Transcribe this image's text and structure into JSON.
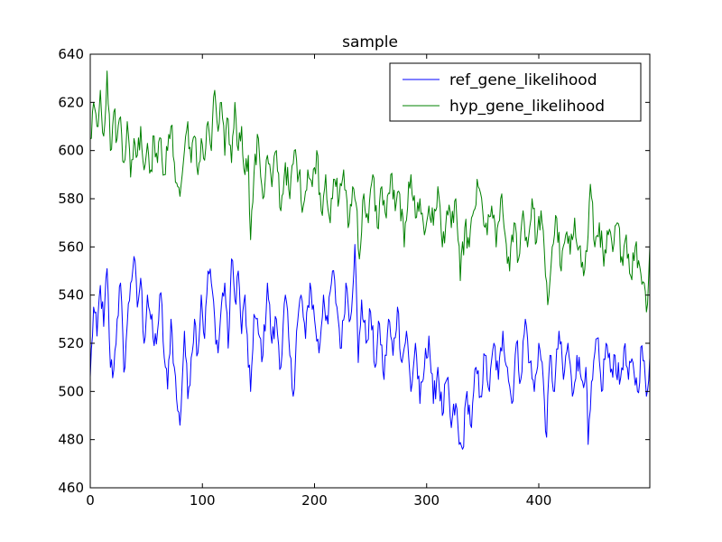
{
  "chart_data": {
    "type": "line",
    "title": "sample",
    "xlabel": "",
    "ylabel": "",
    "xlim": [
      0,
      499
    ],
    "ylim": [
      460,
      640
    ],
    "xticks": [
      0,
      100,
      200,
      300,
      400
    ],
    "yticks": [
      460,
      480,
      500,
      520,
      540,
      560,
      580,
      600,
      620,
      640
    ],
    "grid": false,
    "legend_position": "top-right",
    "series": [
      {
        "name": "ref_gene_likelihood",
        "color": "#0000ff",
        "anchors": [
          [
            0,
            506
          ],
          [
            3,
            535
          ],
          [
            6,
            523
          ],
          [
            9,
            544
          ],
          [
            12,
            527
          ],
          [
            15,
            551
          ],
          [
            18,
            510
          ],
          [
            21,
            509
          ],
          [
            24,
            530
          ],
          [
            27,
            545
          ],
          [
            30,
            508
          ],
          [
            33,
            528
          ],
          [
            36,
            545
          ],
          [
            39,
            556
          ],
          [
            42,
            535
          ],
          [
            45,
            547
          ],
          [
            48,
            520
          ],
          [
            51,
            540
          ],
          [
            54,
            530
          ],
          [
            57,
            519
          ],
          [
            60,
            525
          ],
          [
            63,
            541
          ],
          [
            66,
            514
          ],
          [
            69,
            501
          ],
          [
            72,
            530
          ],
          [
            75,
            510
          ],
          [
            78,
            492
          ],
          [
            80,
            486
          ],
          [
            84,
            525
          ],
          [
            87,
            497
          ],
          [
            90,
            514
          ],
          [
            93,
            530
          ],
          [
            96,
            516
          ],
          [
            99,
            540
          ],
          [
            102,
            522
          ],
          [
            105,
            550
          ],
          [
            108,
            545
          ],
          [
            111,
            530
          ],
          [
            114,
            516
          ],
          [
            117,
            536
          ],
          [
            120,
            545
          ],
          [
            123,
            518
          ],
          [
            126,
            555
          ],
          [
            129,
            538
          ],
          [
            132,
            550
          ],
          [
            135,
            524
          ],
          [
            138,
            540
          ],
          [
            141,
            510
          ],
          [
            143,
            500
          ],
          [
            146,
            532
          ],
          [
            150,
            524
          ],
          [
            154,
            515
          ],
          [
            158,
            545
          ],
          [
            162,
            520
          ],
          [
            166,
            530
          ],
          [
            170,
            510
          ],
          [
            174,
            540
          ],
          [
            178,
            515
          ],
          [
            181,
            498
          ],
          [
            184,
            525
          ],
          [
            188,
            540
          ],
          [
            192,
            522
          ],
          [
            196,
            545
          ],
          [
            200,
            530
          ],
          [
            204,
            516
          ],
          [
            208,
            540
          ],
          [
            212,
            528
          ],
          [
            216,
            550
          ],
          [
            220,
            535
          ],
          [
            224,
            518
          ],
          [
            228,
            545
          ],
          [
            232,
            530
          ],
          [
            236,
            561
          ],
          [
            239,
            512
          ],
          [
            242,
            538
          ],
          [
            246,
            520
          ],
          [
            250,
            533
          ],
          [
            254,
            510
          ],
          [
            258,
            528
          ],
          [
            262,
            505
          ],
          [
            266,
            530
          ],
          [
            270,
            515
          ],
          [
            274,
            535
          ],
          [
            278,
            512
          ],
          [
            282,
            525
          ],
          [
            286,
            500
          ],
          [
            290,
            520
          ],
          [
            294,
            495
          ],
          [
            298,
            510
          ],
          [
            302,
            523
          ],
          [
            306,
            495
          ],
          [
            310,
            510
          ],
          [
            314,
            490
          ],
          [
            318,
            505
          ],
          [
            322,
            485
          ],
          [
            326,
            495
          ],
          [
            329,
            478
          ],
          [
            332,
            476
          ],
          [
            336,
            500
          ],
          [
            340,
            485
          ],
          [
            344,
            510
          ],
          [
            348,
            498
          ],
          [
            352,
            515
          ],
          [
            356,
            500
          ],
          [
            360,
            520
          ],
          [
            364,
            505
          ],
          [
            368,
            525
          ],
          [
            372,
            510
          ],
          [
            376,
            495
          ],
          [
            380,
            520
          ],
          [
            384,
            505
          ],
          [
            388,
            530
          ],
          [
            392,
            512
          ],
          [
            396,
            500
          ],
          [
            400,
            520
          ],
          [
            404,
            505
          ],
          [
            407,
            481
          ],
          [
            410,
            515
          ],
          [
            414,
            500
          ],
          [
            418,
            525
          ],
          [
            422,
            505
          ],
          [
            426,
            520
          ],
          [
            430,
            498
          ],
          [
            434,
            515
          ],
          [
            438,
            505
          ],
          [
            442,
            510
          ],
          [
            444,
            478
          ],
          [
            448,
            505
          ],
          [
            452,
            522
          ],
          [
            456,
            500
          ],
          [
            460,
            520
          ],
          [
            464,
            508
          ],
          [
            468,
            515
          ],
          [
            472,
            503
          ],
          [
            476,
            518
          ],
          [
            480,
            505
          ],
          [
            484,
            512
          ],
          [
            488,
            500
          ],
          [
            492,
            519
          ],
          [
            496,
            498
          ],
          [
            499,
            514
          ]
        ]
      },
      {
        "name": "hyp_gene_likelihood",
        "color": "#008000",
        "anchors": [
          [
            0,
            605
          ],
          [
            3,
            620
          ],
          [
            6,
            610
          ],
          [
            9,
            625
          ],
          [
            12,
            606
          ],
          [
            15,
            633
          ],
          [
            18,
            600
          ],
          [
            21,
            616
          ],
          [
            24,
            605
          ],
          [
            27,
            614
          ],
          [
            30,
            595
          ],
          [
            33,
            612
          ],
          [
            36,
            589
          ],
          [
            39,
            605
          ],
          [
            42,
            598
          ],
          [
            45,
            610
          ],
          [
            48,
            592
          ],
          [
            51,
            603
          ],
          [
            54,
            592
          ],
          [
            57,
            606
          ],
          [
            60,
            595
          ],
          [
            63,
            605
          ],
          [
            66,
            590
          ],
          [
            69,
            600
          ],
          [
            72,
            610
          ],
          [
            75,
            595
          ],
          [
            78,
            585
          ],
          [
            80,
            581
          ],
          [
            84,
            600
          ],
          [
            87,
            612
          ],
          [
            90,
            595
          ],
          [
            93,
            606
          ],
          [
            96,
            590
          ],
          [
            99,
            605
          ],
          [
            102,
            596
          ],
          [
            105,
            612
          ],
          [
            108,
            600
          ],
          [
            111,
            625
          ],
          [
            114,
            608
          ],
          [
            117,
            620
          ],
          [
            120,
            598
          ],
          [
            123,
            613
          ],
          [
            126,
            595
          ],
          [
            129,
            620
          ],
          [
            132,
            600
          ],
          [
            135,
            610
          ],
          [
            138,
            590
          ],
          [
            141,
            598
          ],
          [
            143,
            563
          ],
          [
            146,
            590
          ],
          [
            150,
            605
          ],
          [
            154,
            580
          ],
          [
            158,
            598
          ],
          [
            162,
            585
          ],
          [
            166,
            600
          ],
          [
            170,
            575
          ],
          [
            174,
            595
          ],
          [
            178,
            580
          ],
          [
            182,
            600
          ],
          [
            186,
            590
          ],
          [
            190,
            577
          ],
          [
            194,
            592
          ],
          [
            198,
            585
          ],
          [
            202,
            600
          ],
          [
            206,
            575
          ],
          [
            210,
            590
          ],
          [
            214,
            570
          ],
          [
            218,
            588
          ],
          [
            222,
            580
          ],
          [
            226,
            592
          ],
          [
            230,
            568
          ],
          [
            234,
            585
          ],
          [
            238,
            575
          ],
          [
            240,
            555
          ],
          [
            244,
            582
          ],
          [
            248,
            570
          ],
          [
            252,
            590
          ],
          [
            256,
            568
          ],
          [
            260,
            585
          ],
          [
            264,
            572
          ],
          [
            268,
            590
          ],
          [
            272,
            575
          ],
          [
            276,
            582
          ],
          [
            280,
            560
          ],
          [
            284,
            587
          ],
          [
            286,
            590
          ],
          [
            290,
            572
          ],
          [
            294,
            580
          ],
          [
            298,
            565
          ],
          [
            302,
            577
          ],
          [
            306,
            569
          ],
          [
            310,
            585
          ],
          [
            314,
            560
          ],
          [
            318,
            575
          ],
          [
            322,
            568
          ],
          [
            326,
            580
          ],
          [
            330,
            546
          ],
          [
            334,
            568
          ],
          [
            338,
            560
          ],
          [
            342,
            575
          ],
          [
            346,
            585
          ],
          [
            350,
            575
          ],
          [
            354,
            565
          ],
          [
            358,
            577
          ],
          [
            362,
            560
          ],
          [
            366,
            580
          ],
          [
            370,
            565
          ],
          [
            374,
            550
          ],
          [
            378,
            570
          ],
          [
            382,
            555
          ],
          [
            386,
            575
          ],
          [
            390,
            560
          ],
          [
            394,
            580
          ],
          [
            398,
            562
          ],
          [
            402,
            575
          ],
          [
            406,
            548
          ],
          [
            408,
            536
          ],
          [
            412,
            560
          ],
          [
            416,
            572
          ],
          [
            420,
            550
          ],
          [
            424,
            565
          ],
          [
            428,
            557
          ],
          [
            432,
            572
          ],
          [
            436,
            560
          ],
          [
            440,
            548
          ],
          [
            444,
            565
          ],
          [
            446,
            586
          ],
          [
            450,
            560
          ],
          [
            454,
            570
          ],
          [
            458,
            552
          ],
          [
            462,
            565
          ],
          [
            466,
            558
          ],
          [
            470,
            570
          ],
          [
            474,
            556
          ],
          [
            478,
            565
          ],
          [
            482,
            548
          ],
          [
            486,
            560
          ],
          [
            490,
            552
          ],
          [
            494,
            545
          ],
          [
            496,
            533
          ],
          [
            499,
            560
          ]
        ]
      }
    ]
  }
}
